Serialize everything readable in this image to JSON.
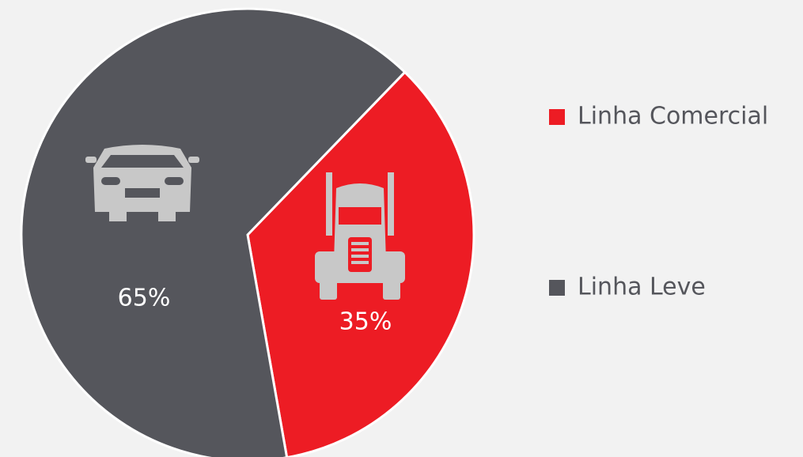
{
  "chart_data": {
    "type": "pie",
    "categories": [
      "Linha Comercial",
      "Linha Leve"
    ],
    "values": [
      35,
      65
    ],
    "value_labels": [
      "35%",
      "65%"
    ],
    "colors": [
      "#ed1c24",
      "#55565c"
    ],
    "legend": "right"
  }
}
